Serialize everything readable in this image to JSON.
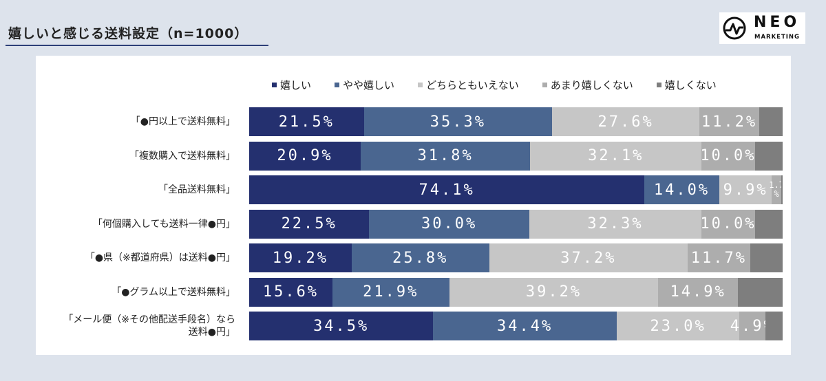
{
  "header": {
    "title": "嬉しいと感じる送料設定（n=1000）",
    "logo_main": "NEO",
    "logo_sub": "MARKETING"
  },
  "colors": {
    "background": "#dde3ec",
    "panel": "#ffffff",
    "series": [
      "#24306f",
      "#4a6690",
      "#c6c6c6",
      "#adadad",
      "#7e7e7e"
    ]
  },
  "chart_data": {
    "type": "bar",
    "orientation": "horizontal-stacked-100",
    "title": "嬉しいと感じる送料設定（n=1000）",
    "legend_position": "top",
    "categories": [
      "「●円以上で送料無料」",
      "「複数購入で送料無料」",
      "「全品送料無料」",
      "「何個購入しても送料一律●円」",
      "「●県（※都道府県）は送料●円」",
      "「●グラム以上で送料無料」",
      "「メール便（※その他配送手段名）なら送料●円」"
    ],
    "category_lines": [
      [
        "「●円以上で送料無料」"
      ],
      [
        "「複数購入で送料無料」"
      ],
      [
        "「全品送料無料」"
      ],
      [
        "「何個購入しても送料一律●円」"
      ],
      [
        "「●県（※都道府県）は送料●円」"
      ],
      [
        "「●グラム以上で送料無料」"
      ],
      [
        "「メール便（※その他配送手段名）なら",
        "送料●円」"
      ]
    ],
    "series": [
      {
        "name": "嬉しい",
        "values": [
          21.5,
          20.9,
          74.1,
          22.5,
          19.2,
          15.6,
          34.5
        ]
      },
      {
        "name": "やや嬉しい",
        "values": [
          35.3,
          31.8,
          14.0,
          30.0,
          25.8,
          21.9,
          34.4
        ]
      },
      {
        "name": "どちらともいえない",
        "values": [
          27.6,
          32.1,
          9.9,
          32.3,
          37.2,
          39.2,
          23.0
        ]
      },
      {
        "name": "あまり嬉しくない",
        "values": [
          11.2,
          10.0,
          1.7,
          10.0,
          11.7,
          14.9,
          4.9
        ]
      },
      {
        "name": "嬉しくない",
        "values": [
          4.4,
          5.2,
          0.3,
          5.2,
          6.1,
          8.4,
          3.2
        ]
      }
    ],
    "data_labels": [
      [
        "21.5%",
        "35.3%",
        "27.6%",
        "11.2%",
        ""
      ],
      [
        "20.9%",
        "31.8%",
        "32.1%",
        "10.0%",
        ""
      ],
      [
        "74.1%",
        "14.0%",
        "9.9%",
        "1.7%",
        ""
      ],
      [
        "22.5%",
        "30.0%",
        "32.3%",
        "10.0%",
        ""
      ],
      [
        "19.2%",
        "25.8%",
        "37.2%",
        "11.7%",
        ""
      ],
      [
        "15.6%",
        "21.9%",
        "39.2%",
        "14.9%",
        ""
      ],
      [
        "34.5%",
        "34.4%",
        "23.0%",
        "4.9%",
        ""
      ]
    ],
    "xlim": [
      0,
      100
    ]
  }
}
